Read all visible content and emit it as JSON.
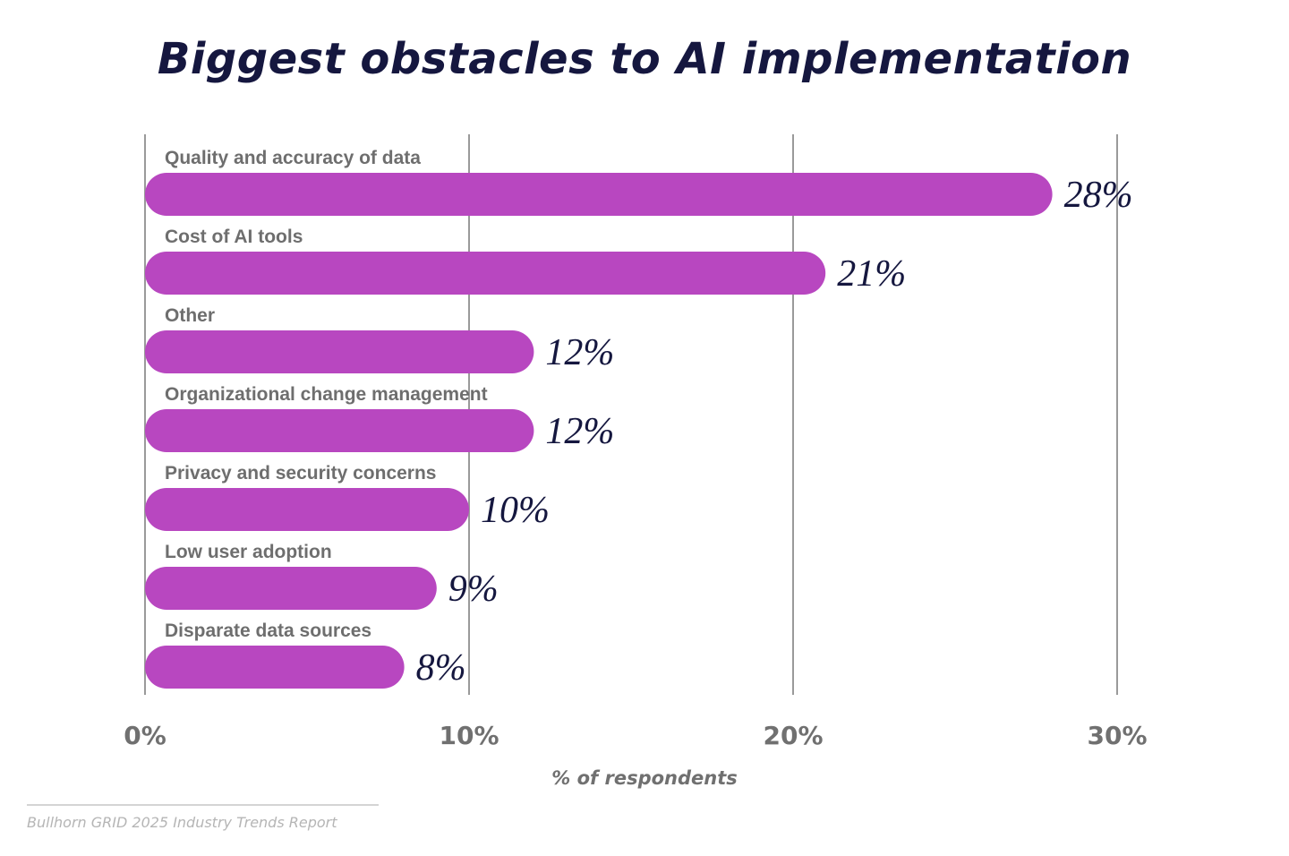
{
  "colors": {
    "bar": "#b847c0",
    "title": "#15173f",
    "value_label": "#15173f",
    "category_label": "#6e6e6e",
    "tick_label": "#707070",
    "gridline": "#9a9a9a",
    "source": "#b5b5b5"
  },
  "chart_data": {
    "type": "bar",
    "orientation": "horizontal",
    "title": "Biggest obstacles to AI implementation",
    "xlabel": "% of respondents",
    "ylabel": "",
    "xlim": [
      0,
      30
    ],
    "x_ticks": [
      "0%",
      "10%",
      "20%",
      "30%"
    ],
    "x_tick_values": [
      0,
      10,
      20,
      30
    ],
    "grid": true,
    "categories": [
      "Quality and accuracy of data",
      "Cost of AI tools",
      "Other",
      "Organizational change management",
      "Privacy and security concerns",
      "Low user adoption",
      "Disparate data sources"
    ],
    "values": [
      28,
      21,
      12,
      12,
      10,
      9,
      8
    ],
    "value_labels": [
      "28%",
      "21%",
      "12%",
      "12%",
      "10%",
      "9%",
      "8%"
    ]
  },
  "source": "Bullhorn GRID 2025 Industry Trends Report"
}
